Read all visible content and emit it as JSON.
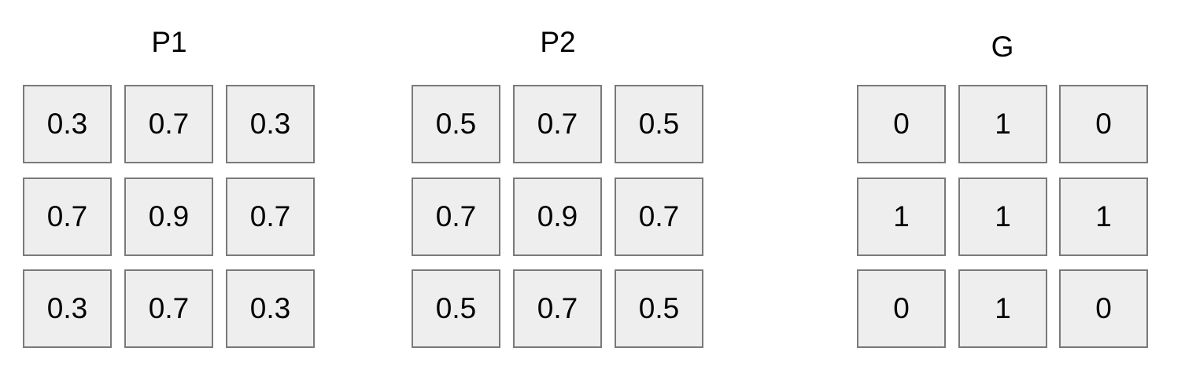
{
  "matrices": [
    {
      "id": "p1",
      "title": "P1",
      "rows": [
        [
          "0.3",
          "0.7",
          "0.3"
        ],
        [
          "0.7",
          "0.9",
          "0.7"
        ],
        [
          "0.3",
          "0.7",
          "0.3"
        ]
      ]
    },
    {
      "id": "p2",
      "title": "P2",
      "rows": [
        [
          "0.5",
          "0.7",
          "0.5"
        ],
        [
          "0.7",
          "0.9",
          "0.7"
        ],
        [
          "0.5",
          "0.7",
          "0.5"
        ]
      ]
    },
    {
      "id": "g",
      "title": "G",
      "rows": [
        [
          "0",
          "1",
          "0"
        ],
        [
          "1",
          "1",
          "1"
        ],
        [
          "0",
          "1",
          "0"
        ]
      ]
    }
  ]
}
